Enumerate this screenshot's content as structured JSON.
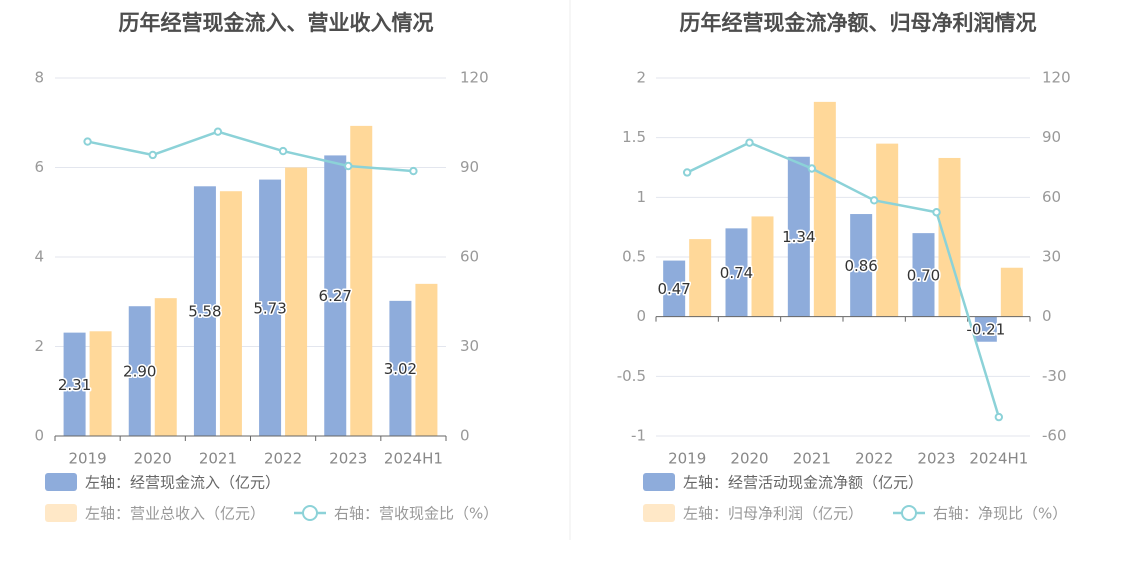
{
  "colors": {
    "bar_primary": "#8eacdb",
    "bar_secondary": "#ffd899",
    "legend_secondary": "#ffe8c7",
    "line": "#8cd2d8",
    "grid": "#e3e6ee",
    "axis": "#666666",
    "divider": "#eeeeee"
  },
  "chart_data": [
    {
      "type": "bar",
      "title": "历年经营现金流入、营业收入情况",
      "categories": [
        "2019",
        "2020",
        "2021",
        "2022",
        "2023",
        "2024H1"
      ],
      "left_axis": {
        "min": 0,
        "max": 8,
        "ticks": [
          "0",
          "2",
          "4",
          "6",
          "8"
        ]
      },
      "right_axis": {
        "min": 0,
        "max": 120,
        "ticks": [
          "0",
          "30",
          "60",
          "90",
          "120"
        ]
      },
      "series": [
        {
          "name": "左轴：经营现金流入（亿元）",
          "axis": "left",
          "values": [
            2.31,
            2.9,
            5.58,
            5.73,
            6.27,
            3.02
          ],
          "labels": [
            "2.31",
            "2.90",
            "5.58",
            "5.73",
            "6.27",
            "3.02"
          ]
        },
        {
          "name": "左轴：营业总收入（亿元）",
          "axis": "left",
          "values": [
            2.34,
            3.08,
            5.47,
            6.0,
            6.93,
            3.4
          ]
        },
        {
          "name": "右轴：营收现金比（%）",
          "axis": "right",
          "kind": "line",
          "values": [
            98.7,
            94.2,
            102.0,
            95.5,
            90.5,
            88.8
          ]
        }
      ]
    },
    {
      "type": "bar",
      "title": "历年经营现金流净额、归母净利润情况",
      "categories": [
        "2019",
        "2020",
        "2021",
        "2022",
        "2023",
        "2024H1"
      ],
      "left_axis": {
        "min": -1,
        "max": 2,
        "ticks": [
          "-1",
          "-0.5",
          "0",
          "0.5",
          "1",
          "1.5",
          "2"
        ]
      },
      "right_axis": {
        "min": -60,
        "max": 120,
        "ticks": [
          "-60",
          "-30",
          "0",
          "30",
          "60",
          "90",
          "120"
        ]
      },
      "series": [
        {
          "name": "左轴：经营活动现金流净额（亿元）",
          "axis": "left",
          "values": [
            0.47,
            0.74,
            1.34,
            0.86,
            0.7,
            -0.21
          ],
          "labels": [
            "0.47",
            "0.74",
            "1.34",
            "0.86",
            "0.70",
            "-0.21"
          ]
        },
        {
          "name": "左轴：归母净利润（亿元）",
          "axis": "left",
          "values": [
            0.65,
            0.84,
            1.8,
            1.45,
            1.33,
            0.41
          ]
        },
        {
          "name": "右轴：净现比（%）",
          "axis": "right",
          "kind": "line",
          "values": [
            72.5,
            87.5,
            74.5,
            58.5,
            52.5,
            -50.5
          ]
        }
      ]
    }
  ]
}
